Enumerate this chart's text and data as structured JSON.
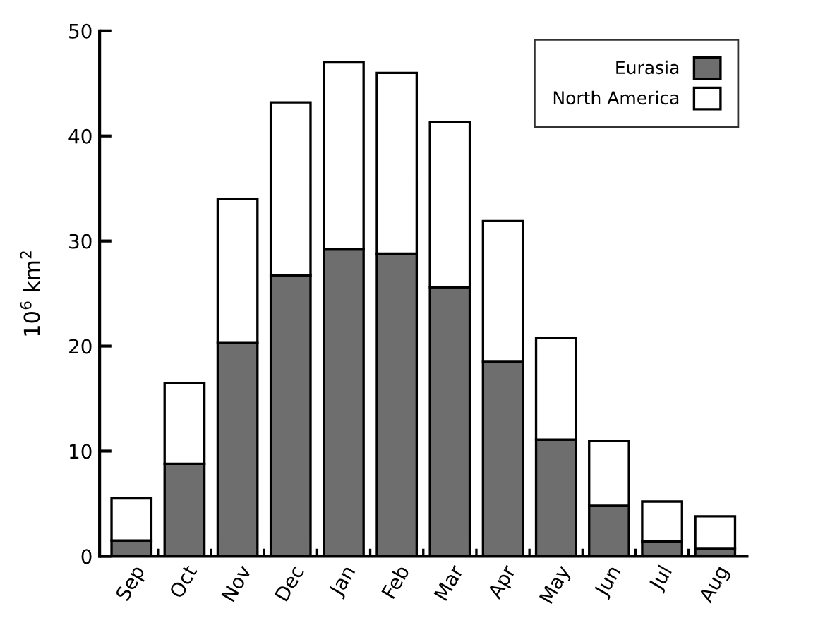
{
  "chart_data": {
    "type": "bar",
    "stacked": true,
    "ylabel": "10$^{6}$ km$^{2}$",
    "categories": [
      "Sep",
      "Oct",
      "Nov",
      "Dec",
      "Jan",
      "Feb",
      "Mar",
      "Apr",
      "May",
      "Jun",
      "Jul",
      "Aug"
    ],
    "series": [
      {
        "name": "Eurasia",
        "color": "#6e6e6e",
        "values": [
          1.5,
          8.8,
          20.3,
          26.7,
          29.2,
          28.8,
          25.6,
          18.5,
          11.1,
          4.8,
          1.4,
          0.7
        ]
      },
      {
        "name": "North America",
        "color": "#ffffff",
        "values": [
          4.0,
          7.7,
          13.7,
          16.5,
          17.8,
          17.2,
          15.7,
          13.4,
          9.7,
          6.2,
          3.8,
          3.1
        ]
      }
    ],
    "ylim": [
      0,
      50
    ],
    "yticks": [
      0,
      10,
      20,
      30,
      40,
      50
    ],
    "grid": false,
    "legend": "top right"
  }
}
